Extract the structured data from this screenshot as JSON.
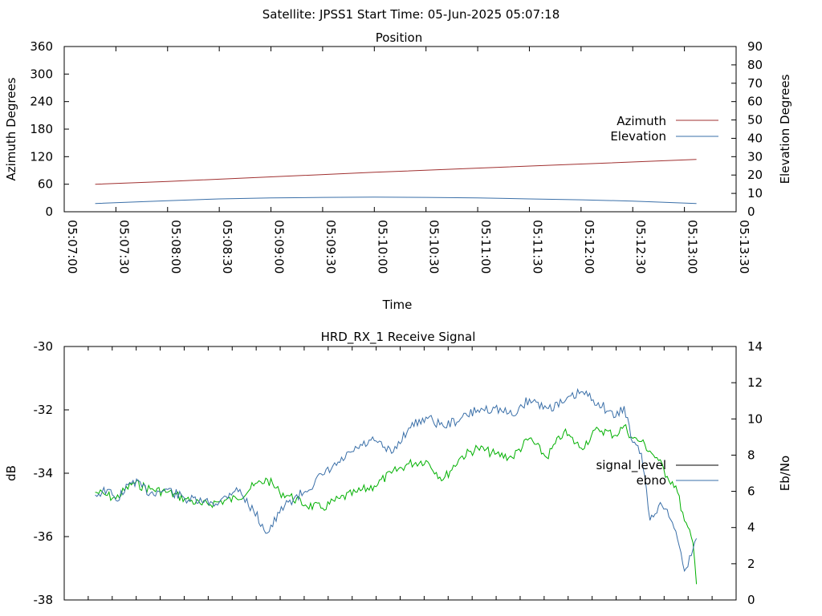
{
  "suptitle": "Satellite: JPSS1    Start Time: 05-Jun-2025 05:07:18",
  "colors": {
    "azimuth": "#a03030",
    "elevation": "#3a6fa8",
    "signal_level": "#00b000",
    "ebno": "#3a6fa8",
    "axes": "#000000"
  },
  "chart_data": [
    {
      "type": "line",
      "title": "Position",
      "xlabel": "Time",
      "ylabel": "Azimuth Degrees",
      "y2label": "Elevation Degrees",
      "x_ticks": [
        "05:07:00",
        "05:07:30",
        "05:08:00",
        "05:08:30",
        "05:09:00",
        "05:09:30",
        "05:10:00",
        "05:10:30",
        "05:11:00",
        "05:11:30",
        "05:12:00",
        "05:12:30",
        "05:13:00",
        "05:13:30"
      ],
      "x_tick_seconds": [
        0,
        30,
        60,
        90,
        120,
        150,
        180,
        210,
        240,
        270,
        300,
        330,
        360,
        390
      ],
      "ylim": [
        0,
        360
      ],
      "y_ticks": [
        0,
        60,
        120,
        180,
        240,
        300,
        360
      ],
      "y2lim": [
        0,
        90
      ],
      "y2_ticks": [
        0,
        10,
        20,
        30,
        40,
        50,
        60,
        70,
        80,
        90
      ],
      "legend": "right",
      "series": [
        {
          "name": "Azimuth",
          "axis": "y",
          "x": [
            18,
            60,
            120,
            180,
            240,
            300,
            367
          ],
          "values": [
            60,
            66,
            76,
            86,
            95,
            104,
            114
          ]
        },
        {
          "name": "Elevation",
          "axis": "y2",
          "x": [
            18,
            60,
            90,
            120,
            150,
            180,
            210,
            240,
            270,
            300,
            330,
            367
          ],
          "values": [
            4.5,
            6.0,
            7.0,
            7.5,
            7.8,
            8.0,
            7.8,
            7.5,
            7.0,
            6.5,
            5.8,
            4.5
          ]
        }
      ]
    },
    {
      "type": "line",
      "title": "HRD_RX_1 Receive Signal",
      "ylabel": "dB",
      "y2label": "Eb/No",
      "xlim": [
        0,
        390
      ],
      "x_tick_count": 27,
      "ylim": [
        -38,
        -30
      ],
      "y_ticks": [
        -38,
        -36,
        -34,
        -32,
        -30
      ],
      "y2lim": [
        0,
        14
      ],
      "y2_ticks": [
        0,
        2,
        4,
        6,
        8,
        10,
        12,
        14
      ],
      "legend": "right",
      "series": [
        {
          "name": "signal_level",
          "axis": "y",
          "x": [
            18,
            25,
            30,
            40,
            50,
            60,
            70,
            80,
            90,
            100,
            110,
            118,
            125,
            130,
            140,
            150,
            160,
            170,
            180,
            190,
            200,
            210,
            220,
            230,
            240,
            250,
            260,
            270,
            280,
            290,
            300,
            310,
            320,
            325,
            330,
            335,
            340,
            345,
            350,
            355,
            360,
            365,
            367
          ],
          "values": [
            -34.6,
            -34.7,
            -34.8,
            -34.3,
            -34.5,
            -34.6,
            -34.8,
            -35.0,
            -34.9,
            -34.8,
            -34.4,
            -34.2,
            -34.6,
            -34.7,
            -35.0,
            -35.1,
            -34.8,
            -34.6,
            -34.4,
            -34.0,
            -33.7,
            -33.6,
            -34.2,
            -33.5,
            -33.2,
            -33.4,
            -33.5,
            -32.9,
            -33.5,
            -32.7,
            -33.2,
            -32.6,
            -32.8,
            -32.5,
            -32.9,
            -33.0,
            -33.3,
            -33.6,
            -34.1,
            -34.4,
            -35.5,
            -36.2,
            -37.5
          ]
        },
        {
          "name": "ebno",
          "axis": "y2",
          "x": [
            18,
            25,
            30,
            40,
            50,
            60,
            70,
            80,
            90,
            100,
            110,
            118,
            125,
            130,
            140,
            150,
            160,
            170,
            180,
            190,
            200,
            210,
            220,
            230,
            240,
            250,
            260,
            270,
            280,
            290,
            300,
            310,
            320,
            325,
            330,
            335,
            340,
            345,
            350,
            355,
            360,
            365,
            367
          ],
          "values": [
            5.8,
            6.1,
            5.5,
            6.6,
            5.9,
            6.1,
            5.6,
            5.4,
            5.4,
            6.2,
            4.9,
            3.7,
            4.8,
            5.4,
            6.0,
            6.9,
            7.6,
            8.4,
            8.8,
            8.1,
            9.5,
            10.1,
            9.6,
            10.0,
            10.5,
            10.6,
            10.2,
            11.1,
            10.6,
            10.9,
            11.5,
            10.9,
            10.1,
            10.7,
            8.7,
            8.1,
            4.4,
            5.2,
            5.0,
            3.8,
            1.6,
            2.8,
            3.4
          ]
        }
      ]
    }
  ]
}
